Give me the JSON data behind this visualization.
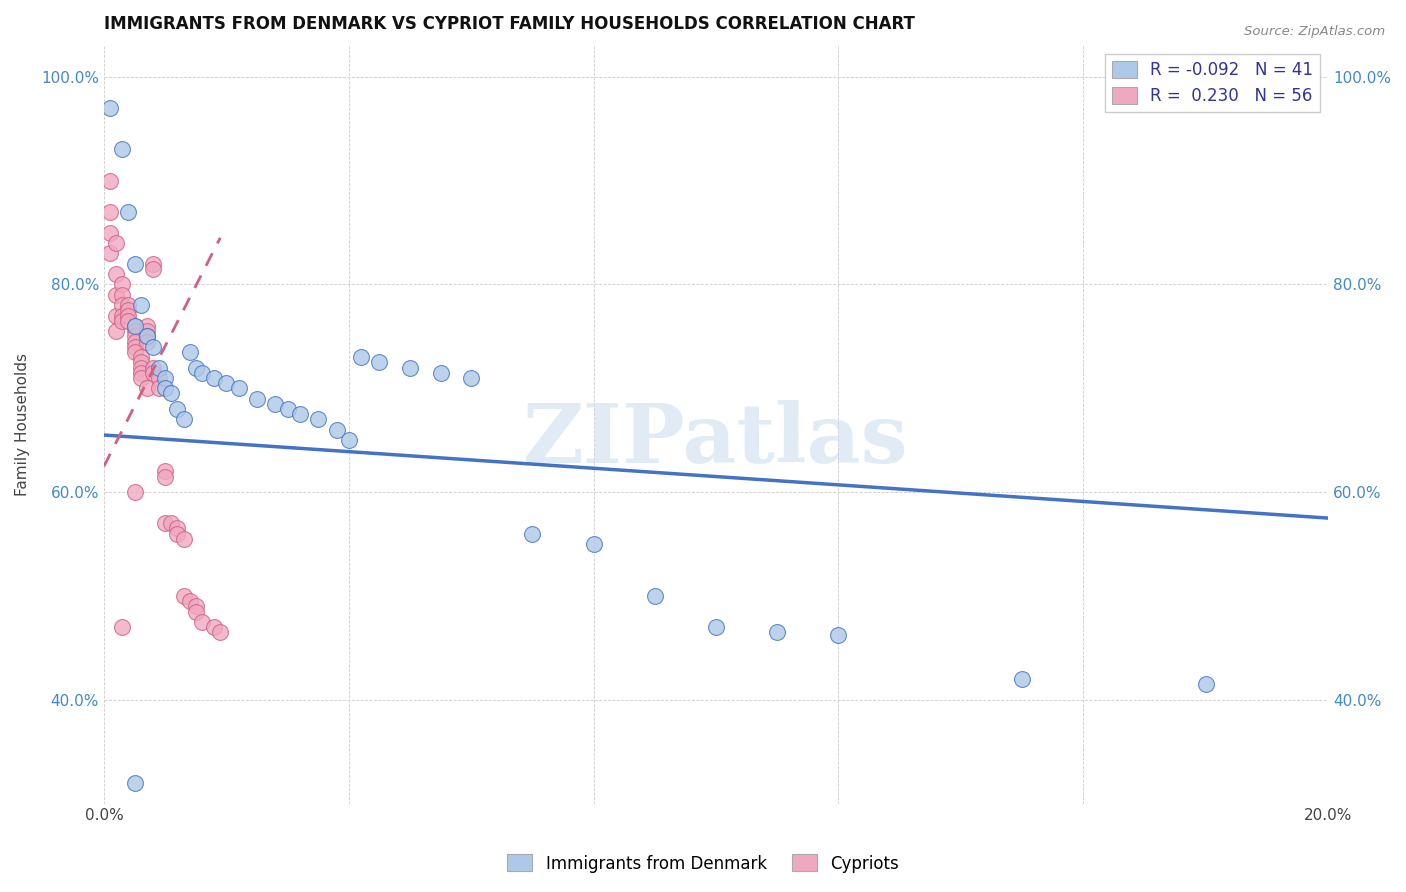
{
  "title": "IMMIGRANTS FROM DENMARK VS CYPRIOT FAMILY HOUSEHOLDS CORRELATION CHART",
  "source": "Source: ZipAtlas.com",
  "ylabel": "Family Households",
  "xlim": [
    0.0,
    0.2
  ],
  "ylim": [
    0.3,
    1.03
  ],
  "xticks": [
    0.0,
    0.04,
    0.08,
    0.12,
    0.16,
    0.2
  ],
  "xticklabels": [
    "0.0%",
    "",
    "",
    "",
    "",
    "20.0%"
  ],
  "yticks": [
    0.4,
    0.6,
    0.8,
    1.0
  ],
  "yticklabels": [
    "40.0%",
    "60.0%",
    "80.0%",
    "100.0%"
  ],
  "legend_r_blue": "-0.092",
  "legend_n_blue": "41",
  "legend_r_pink": "0.230",
  "legend_n_pink": "56",
  "blue_color": "#adc8e8",
  "pink_color": "#f0a8c0",
  "blue_line_color": "#4472c4",
  "pink_line_color": "#d06080",
  "watermark_text": "ZIPatlas",
  "blue_scatter_x": [
    0.001,
    0.003,
    0.004,
    0.005,
    0.005,
    0.006,
    0.007,
    0.008,
    0.009,
    0.01,
    0.01,
    0.011,
    0.012,
    0.013,
    0.014,
    0.015,
    0.016,
    0.018,
    0.02,
    0.022,
    0.025,
    0.028,
    0.03,
    0.032,
    0.035,
    0.038,
    0.04,
    0.042,
    0.045,
    0.05,
    0.055,
    0.06,
    0.07,
    0.08,
    0.09,
    0.1,
    0.11,
    0.12,
    0.15,
    0.18,
    0.005
  ],
  "blue_scatter_y": [
    0.97,
    0.93,
    0.87,
    0.82,
    0.76,
    0.78,
    0.75,
    0.74,
    0.72,
    0.71,
    0.7,
    0.695,
    0.68,
    0.67,
    0.735,
    0.72,
    0.715,
    0.71,
    0.705,
    0.7,
    0.69,
    0.685,
    0.68,
    0.675,
    0.67,
    0.66,
    0.65,
    0.73,
    0.725,
    0.72,
    0.715,
    0.71,
    0.56,
    0.55,
    0.5,
    0.47,
    0.465,
    0.462,
    0.42,
    0.415,
    0.32
  ],
  "pink_scatter_x": [
    0.001,
    0.001,
    0.001,
    0.001,
    0.002,
    0.002,
    0.002,
    0.002,
    0.002,
    0.003,
    0.003,
    0.003,
    0.003,
    0.003,
    0.004,
    0.004,
    0.004,
    0.004,
    0.005,
    0.005,
    0.005,
    0.005,
    0.005,
    0.005,
    0.006,
    0.006,
    0.006,
    0.006,
    0.006,
    0.007,
    0.007,
    0.007,
    0.007,
    0.007,
    0.008,
    0.008,
    0.008,
    0.008,
    0.009,
    0.009,
    0.01,
    0.01,
    0.01,
    0.011,
    0.012,
    0.012,
    0.013,
    0.013,
    0.014,
    0.015,
    0.015,
    0.016,
    0.018,
    0.019,
    0.005,
    0.003
  ],
  "pink_scatter_y": [
    0.9,
    0.87,
    0.85,
    0.83,
    0.84,
    0.81,
    0.79,
    0.77,
    0.755,
    0.8,
    0.79,
    0.78,
    0.77,
    0.765,
    0.78,
    0.775,
    0.77,
    0.765,
    0.76,
    0.755,
    0.75,
    0.745,
    0.74,
    0.735,
    0.73,
    0.725,
    0.72,
    0.715,
    0.71,
    0.76,
    0.755,
    0.75,
    0.745,
    0.7,
    0.82,
    0.815,
    0.72,
    0.715,
    0.71,
    0.7,
    0.62,
    0.615,
    0.57,
    0.57,
    0.565,
    0.56,
    0.555,
    0.5,
    0.495,
    0.49,
    0.485,
    0.475,
    0.47,
    0.465,
    0.6,
    0.47
  ],
  "blue_line_x0": 0.0,
  "blue_line_x1": 0.2,
  "blue_line_y0": 0.655,
  "blue_line_y1": 0.575,
  "pink_line_x0": 0.0,
  "pink_line_x1": 0.019,
  "pink_line_y0": 0.625,
  "pink_line_y1": 0.845
}
